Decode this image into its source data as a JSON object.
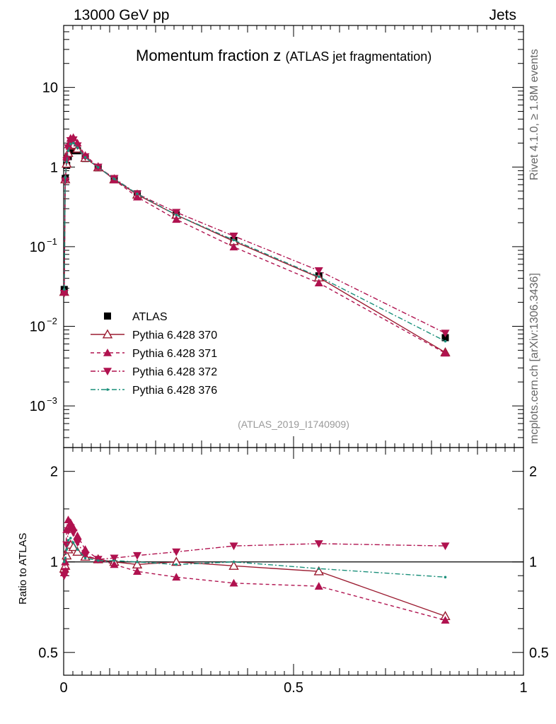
{
  "header": {
    "left": "13000 GeV pp",
    "right": "Jets"
  },
  "side": {
    "top": "Rivet 4.1.0, ≥ 1.8M events",
    "bottom": "mcplots.cern.ch [arXiv:1306.3436]"
  },
  "chart_data": [
    {
      "panel": "main",
      "type": "line",
      "title_main": "Momentum fraction z",
      "title_sub": "(ATLAS jet fragmentation)",
      "watermark": "(ATLAS_2019_I1740909)",
      "yscale": "log",
      "xlim": [
        0,
        1
      ],
      "ylim": [
        0.0003,
        60
      ],
      "yticks": [
        {
          "v": 10,
          "label": "10"
        },
        {
          "v": 1,
          "label": "1"
        },
        {
          "v": 0.1,
          "label": "10",
          "exp": "−1"
        },
        {
          "v": 0.01,
          "label": "10",
          "exp": "−2"
        },
        {
          "v": 0.001,
          "label": "10",
          "exp": "−3"
        }
      ],
      "x": [
        0.0012,
        0.0035,
        0.0065,
        0.01,
        0.015,
        0.021,
        0.03,
        0.047,
        0.075,
        0.11,
        0.16,
        0.245,
        0.37,
        0.555,
        0.83
      ],
      "series": [
        {
          "name": "ATLAS",
          "color": "#000000",
          "dash": "",
          "marker": "square",
          "line": false,
          "values": [
            0.029,
            0.72,
            1.05,
            1.35,
            1.6,
            1.7,
            1.6,
            1.28,
            0.98,
            0.7,
            0.46,
            0.25,
            0.12,
            0.043,
            0.0072
          ]
        },
        {
          "name": "Pythia 6.428 370",
          "color": "#9b1b30",
          "dash": "",
          "marker": "triangle-open",
          "line": true,
          "values": [
            0.027,
            0.7,
            1.1,
            1.5,
            1.85,
            1.9,
            1.7,
            1.3,
            0.99,
            0.7,
            0.45,
            0.25,
            0.117,
            0.041,
            0.0047
          ]
        },
        {
          "name": "Pythia 6.428 371",
          "color": "#b0124f",
          "dash": "5,4",
          "marker": "triangle",
          "line": true,
          "values": [
            0.027,
            0.72,
            1.35,
            1.9,
            2.3,
            2.35,
            2.0,
            1.4,
            1.01,
            0.69,
            0.42,
            0.22,
            0.099,
            0.035,
            0.0046
          ]
        },
        {
          "name": "Pythia 6.428 372",
          "color": "#b0124f",
          "dash": "7,3,2,3",
          "marker": "triangle-down",
          "line": true,
          "values": [
            0.026,
            0.67,
            1.2,
            1.75,
            2.15,
            2.2,
            1.85,
            1.35,
            1.0,
            0.72,
            0.46,
            0.27,
            0.136,
            0.05,
            0.0082
          ]
        },
        {
          "name": "Pythia 6.428 376",
          "color": "#1a8f7a",
          "dash": "7,3,2,3",
          "marker": "dot",
          "line": true,
          "values": [
            0.029,
            0.74,
            1.15,
            1.6,
            1.95,
            2.0,
            1.75,
            1.32,
            0.99,
            0.71,
            0.46,
            0.25,
            0.121,
            0.042,
            0.0065
          ]
        }
      ]
    },
    {
      "panel": "ratio",
      "type": "line",
      "ylabel": "Ratio to ATLAS",
      "yscale": "log",
      "xlim": [
        0,
        1
      ],
      "ylim": [
        0.42,
        2.4
      ],
      "yticks": [
        {
          "v": 2,
          "label": "2"
        },
        {
          "v": 1,
          "label": "1"
        },
        {
          "v": 0.5,
          "label": "0.5"
        }
      ],
      "xticks": [
        {
          "v": 0,
          "label": "0"
        },
        {
          "v": 0.5,
          "label": "0.5"
        },
        {
          "v": 1,
          "label": "1"
        }
      ],
      "x": [
        0.0012,
        0.0035,
        0.0065,
        0.01,
        0.015,
        0.021,
        0.03,
        0.047,
        0.075,
        0.11,
        0.16,
        0.245,
        0.37,
        0.555,
        0.83
      ],
      "series": [
        {
          "name": "Pythia 6.428 370",
          "color": "#9b1b30",
          "dash": "",
          "marker": "triangle-open",
          "values": [
            0.95,
            0.97,
            1.05,
            1.1,
            1.14,
            1.12,
            1.08,
            1.04,
            1.02,
            1.0,
            0.98,
            1.0,
            0.97,
            0.93,
            0.66
          ]
        },
        {
          "name": "Pythia 6.428 371",
          "color": "#b0124f",
          "dash": "5,4",
          "marker": "triangle",
          "values": [
            0.92,
            1.0,
            1.28,
            1.38,
            1.35,
            1.3,
            1.22,
            1.1,
            1.02,
            0.98,
            0.93,
            0.89,
            0.85,
            0.83,
            0.64
          ]
        },
        {
          "name": "Pythia 6.428 372",
          "color": "#b0124f",
          "dash": "7,3,2,3",
          "marker": "triangle-down",
          "values": [
            0.9,
            0.93,
            1.14,
            1.27,
            1.3,
            1.25,
            1.16,
            1.05,
            1.02,
            1.03,
            1.05,
            1.08,
            1.13,
            1.15,
            1.13
          ]
        },
        {
          "name": "Pythia 6.428 376",
          "color": "#1a8f7a",
          "dash": "7,3,2,3",
          "marker": "dot",
          "values": [
            1.0,
            1.03,
            1.1,
            1.18,
            1.2,
            1.16,
            1.1,
            1.03,
            1.01,
            1.01,
            1.0,
            0.98,
            1.0,
            0.95,
            0.89
          ]
        }
      ]
    }
  ]
}
